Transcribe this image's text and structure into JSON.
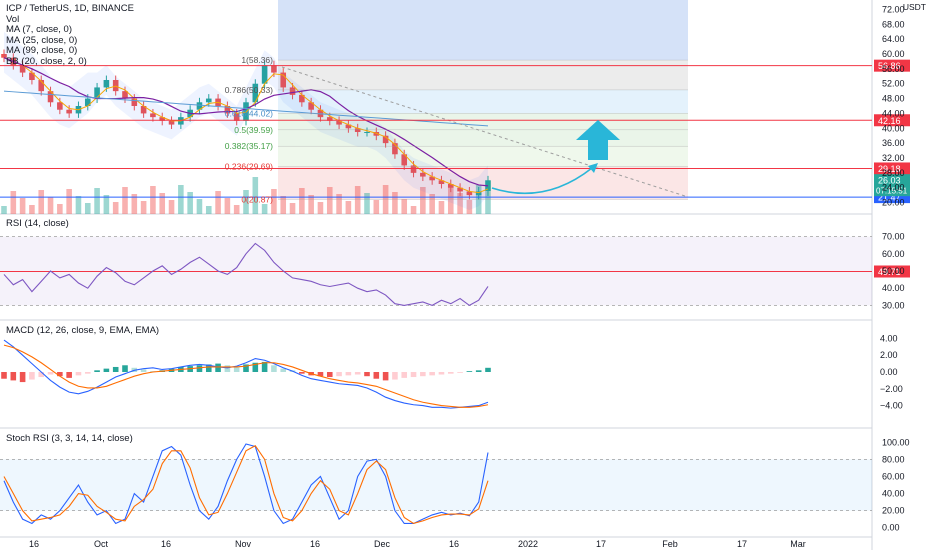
{
  "header": {
    "symbol_line": "ICP / TetherUS, 1D, BINANCE",
    "vol_label": "Vol",
    "ma1": "MA (7, close, 0)",
    "ma2": "MA (25, close, 0)",
    "ma3": "MA (99, close, 0)",
    "bb": "BB (20, close, 2, 0)",
    "currency": "USDT"
  },
  "colors": {
    "up": "#26a69a",
    "down": "#ef5350",
    "hline": "#f23645",
    "support_line": "#2962ff",
    "ma7": "#f7a600",
    "ma25": "#7b1fa2",
    "ma99": "#5b9bd5",
    "arrow": "#29b6d8",
    "rsi": "#7e57c2",
    "macd": "#2962ff",
    "signal": "#ff6d00",
    "stoch_k": "#2962ff",
    "stoch_d": "#ff6d00"
  },
  "icons": {
    "arrow": "up-arrow-icon"
  },
  "chart_data": [
    {
      "type": "line",
      "pane": "price",
      "title": "ICP / TetherUS, 1D, BINANCE",
      "unit": "USDT",
      "ylim": [
        18,
        74
      ],
      "x_ticks": [
        "16",
        "Oct",
        "16",
        "Nov",
        "16",
        "Dec",
        "16",
        "2022",
        "17",
        "Feb",
        "17",
        "Mar"
      ],
      "y_ticks": [
        "72.00",
        "68.00",
        "64.00",
        "60.00",
        "56.00",
        "52.00",
        "48.00",
        "44.00",
        "40.00",
        "36.00",
        "32.00",
        "28.00",
        "24.00",
        "20.00"
      ],
      "series": [
        {
          "name": "close",
          "values": [
            59,
            57,
            55,
            53,
            50,
            47,
            45,
            44,
            46,
            48,
            51,
            53,
            50,
            48,
            46,
            44,
            43,
            42,
            41,
            43,
            45,
            47,
            48,
            46,
            44,
            42,
            47,
            52,
            57,
            55,
            51,
            49,
            47,
            45,
            43,
            42,
            41,
            40,
            39,
            39,
            38,
            36,
            33,
            30,
            28,
            27,
            26,
            25,
            24,
            23,
            22,
            23,
            26
          ]
        }
      ],
      "horizontal_levels": [
        {
          "label": "56.86",
          "value": 56.86
        },
        {
          "label": "42.16",
          "value": 42.16
        },
        {
          "label": "29.18",
          "value": 29.18
        },
        {
          "label": "21.47",
          "value": 21.47
        }
      ],
      "current_price": {
        "value": "26.03",
        "countdown": "07:15:51"
      },
      "fibonacci": [
        {
          "label": "1(58.36)",
          "value": 58.36
        },
        {
          "label": "0.786(50.33)",
          "value": 50.33
        },
        {
          "label": "0.618(44.02)",
          "value": 44.02
        },
        {
          "label": "0.5(39.59)",
          "value": 39.59
        },
        {
          "label": "0.382(35.17)",
          "value": 35.17
        },
        {
          "label": "0.236(29.69)",
          "value": 29.69
        },
        {
          "label": "0(20.87)",
          "value": 20.87
        }
      ]
    },
    {
      "type": "line",
      "pane": "rsi",
      "title": "RSI (14, close)",
      "ylim": [
        25,
        75
      ],
      "y_ticks": [
        "70.00",
        "60.00",
        "50.00",
        "40.00",
        "30.00"
      ],
      "level": "49.71",
      "series": [
        {
          "name": "RSI",
          "values": [
            48,
            42,
            45,
            38,
            44,
            50,
            46,
            48,
            43,
            40,
            47,
            52,
            49,
            44,
            42,
            46,
            50,
            53,
            48,
            51,
            55,
            58,
            54,
            50,
            48,
            52,
            60,
            66,
            62,
            55,
            50,
            46,
            45,
            44,
            42,
            41,
            42,
            43,
            40,
            38,
            39,
            36,
            31,
            30,
            31,
            32,
            30,
            33,
            31,
            34,
            30,
            33,
            41
          ]
        }
      ]
    },
    {
      "type": "bar",
      "pane": "macd",
      "title": "MACD (12, 26, close, 9, EMA, EMA)",
      "ylim": [
        -5,
        5
      ],
      "y_ticks": [
        "4.00",
        "2.00",
        "0.00",
        "−2.00",
        "−4.00"
      ],
      "series": [
        {
          "name": "histogram",
          "values": [
            -0.8,
            -1.0,
            -1.2,
            -0.9,
            -0.6,
            -0.3,
            -0.5,
            -0.7,
            -0.4,
            -0.2,
            0.2,
            0.4,
            0.6,
            0.8,
            0.5,
            0.3,
            0.1,
            0.2,
            0.4,
            0.6,
            0.7,
            0.8,
            0.9,
            1.0,
            0.8,
            0.6,
            0.9,
            1.1,
            1.2,
            0.8,
            0.4,
            0.2,
            -0.2,
            -0.4,
            -0.5,
            -0.6,
            -0.5,
            -0.4,
            -0.3,
            -0.5,
            -0.8,
            -1.0,
            -0.9,
            -0.7,
            -0.6,
            -0.5,
            -0.4,
            -0.3,
            -0.2,
            -0.1,
            0.1,
            0.2,
            0.5
          ]
        },
        {
          "name": "MACD",
          "values": [
            3.8,
            3.0,
            2.0,
            1.0,
            0.0,
            -1.0,
            -1.8,
            -2.4,
            -2.6,
            -2.3,
            -1.8,
            -1.2,
            -0.6,
            -0.2,
            0.2,
            0.4,
            0.5,
            0.3,
            0.4,
            0.6,
            0.8,
            0.9,
            0.8,
            0.6,
            0.5,
            0.7,
            1.1,
            1.6,
            1.4,
            1.0,
            0.5,
            0.1,
            -0.4,
            -0.8,
            -1.0,
            -1.2,
            -1.4,
            -1.5,
            -1.6,
            -1.9,
            -2.4,
            -3.0,
            -3.4,
            -3.7,
            -3.9,
            -4.0,
            -4.2,
            -4.2,
            -4.3,
            -4.2,
            -4.1,
            -4.0,
            -3.6
          ]
        },
        {
          "name": "signal",
          "values": [
            3.2,
            2.9,
            2.4,
            1.8,
            1.1,
            0.3,
            -0.5,
            -1.2,
            -1.7,
            -1.9,
            -1.9,
            -1.7,
            -1.3,
            -0.9,
            -0.5,
            -0.2,
            0.0,
            0.1,
            0.2,
            0.3,
            0.4,
            0.5,
            0.6,
            0.6,
            0.6,
            0.6,
            0.7,
            0.9,
            1.1,
            1.1,
            0.9,
            0.6,
            0.2,
            -0.2,
            -0.5,
            -0.8,
            -1.0,
            -1.2,
            -1.3,
            -1.5,
            -1.7,
            -2.1,
            -2.5,
            -2.9,
            -3.3,
            -3.6,
            -3.8,
            -4.0,
            -4.1,
            -4.2,
            -4.2,
            -4.1,
            -3.9
          ]
        }
      ]
    },
    {
      "type": "line",
      "pane": "stoch",
      "title": "Stoch RSI (3, 3, 14, 14, close)",
      "ylim": [
        -5,
        105
      ],
      "y_ticks": [
        "100.00",
        "80.00",
        "60.00",
        "40.00",
        "20.00",
        "0.00"
      ],
      "series": [
        {
          "name": "K",
          "values": [
            55,
            30,
            10,
            5,
            15,
            10,
            20,
            35,
            50,
            30,
            15,
            20,
            5,
            10,
            40,
            30,
            60,
            90,
            95,
            85,
            50,
            20,
            10,
            25,
            55,
            80,
            98,
            95,
            60,
            20,
            5,
            10,
            30,
            50,
            60,
            35,
            10,
            20,
            60,
            78,
            80,
            60,
            20,
            5,
            5,
            10,
            15,
            18,
            15,
            17,
            14,
            30,
            88
          ]
        },
        {
          "name": "D",
          "values": [
            60,
            40,
            20,
            8,
            10,
            12,
            15,
            25,
            40,
            38,
            25,
            18,
            10,
            8,
            25,
            33,
            45,
            75,
            90,
            90,
            70,
            35,
            15,
            18,
            40,
            65,
            90,
            96,
            80,
            40,
            12,
            8,
            20,
            40,
            55,
            45,
            20,
            15,
            40,
            68,
            78,
            68,
            35,
            12,
            5,
            8,
            12,
            15,
            16,
            16,
            15,
            22,
            55
          ]
        }
      ]
    }
  ]
}
